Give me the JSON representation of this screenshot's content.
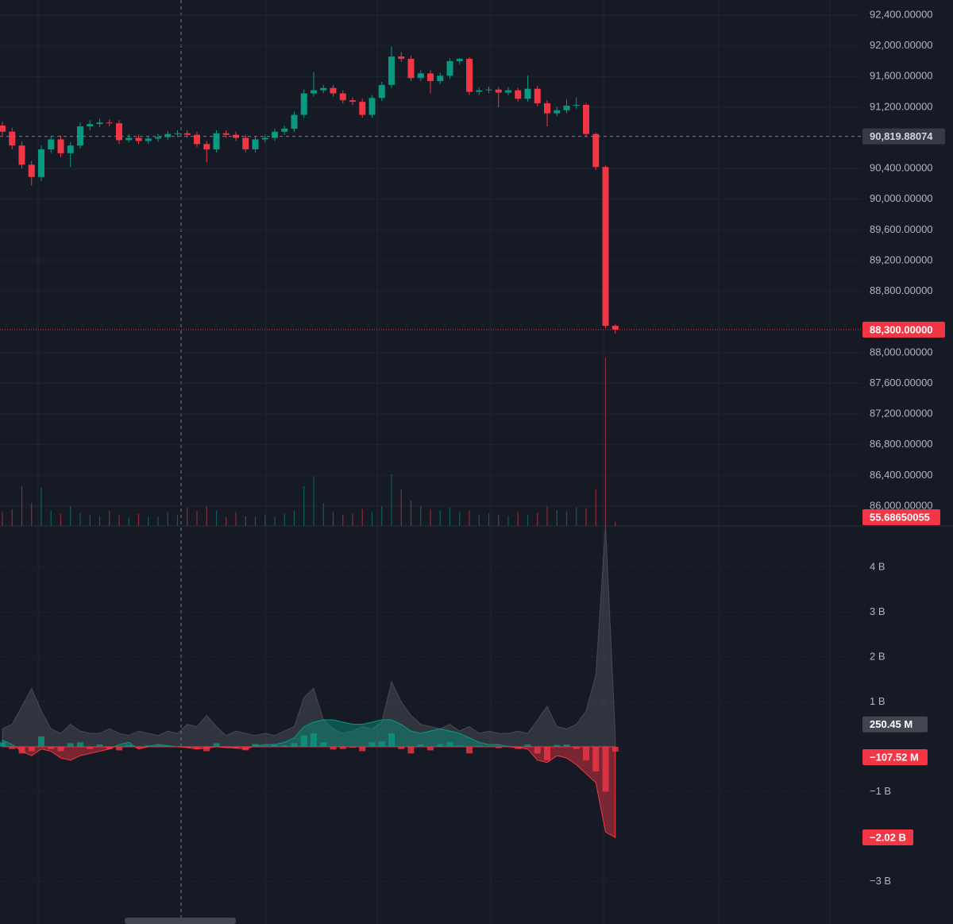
{
  "chart_data": [
    {
      "type": "candlestick",
      "open": [
        90960,
        90880,
        90700,
        90450,
        90290,
        90650,
        90780,
        90600,
        90700,
        90950,
        90980,
        91000,
        90990,
        90770,
        90800,
        90760,
        90790,
        90810,
        90850,
        90860,
        90840,
        90720,
        90650,
        90860,
        90840,
        90800,
        90650,
        90780,
        90800,
        90880,
        90920,
        91100,
        91380,
        91420,
        91450,
        91380,
        91290,
        91270,
        91100,
        91320,
        91490,
        91860,
        91830,
        91580,
        91640,
        91540,
        91610,
        91800,
        91830,
        91400,
        91420,
        91430,
        91390,
        91420,
        91310,
        91440,
        91250,
        91120,
        91160,
        91220,
        91230,
        90850,
        90420,
        88350
      ],
      "high": [
        91010,
        90930,
        90750,
        90500,
        90700,
        90830,
        90830,
        90750,
        91000,
        91030,
        91050,
        91040,
        91030,
        90850,
        90840,
        90830,
        90850,
        90890,
        90900,
        90900,
        90880,
        90760,
        90900,
        90900,
        90880,
        90840,
        90820,
        90840,
        90920,
        90960,
        91140,
        91430,
        91660,
        91490,
        91490,
        91420,
        91330,
        91310,
        91360,
        91530,
        91990,
        91920,
        91870,
        91680,
        91680,
        91650,
        91840,
        91840,
        91850,
        91460,
        91470,
        91460,
        91460,
        91450,
        91610,
        91480,
        91290,
        91210,
        91300,
        91330,
        91260,
        90870,
        90440,
        88370
      ],
      "low": [
        90830,
        90650,
        90400,
        90180,
        90240,
        90600,
        90550,
        90420,
        90660,
        90900,
        90940,
        90950,
        90720,
        90740,
        90720,
        90720,
        90750,
        90770,
        90810,
        90800,
        90680,
        90480,
        90610,
        90800,
        90760,
        90610,
        90610,
        90740,
        90760,
        90840,
        90880,
        91060,
        91340,
        91380,
        91340,
        91250,
        91230,
        91060,
        91060,
        91280,
        91450,
        91790,
        91540,
        91540,
        91380,
        91500,
        91570,
        91760,
        91360,
        91360,
        91380,
        91200,
        91350,
        91270,
        91270,
        91210,
        90950,
        91080,
        91120,
        91180,
        90810,
        90380,
        88320,
        88250
      ],
      "close": [
        90880,
        90700,
        90450,
        90290,
        90650,
        90780,
        90600,
        90700,
        90950,
        90980,
        91000,
        90990,
        90770,
        90800,
        90760,
        90790,
        90810,
        90850,
        90860,
        90840,
        90720,
        90650,
        90860,
        90840,
        90800,
        90650,
        90780,
        90800,
        90880,
        90920,
        91100,
        91380,
        91420,
        91450,
        91380,
        91290,
        91270,
        91100,
        91320,
        91490,
        91860,
        91830,
        91580,
        91640,
        91540,
        91610,
        91800,
        91830,
        91400,
        91420,
        91430,
        91390,
        91420,
        91310,
        91440,
        91250,
        91120,
        91160,
        91220,
        91230,
        90850,
        90420,
        88350,
        88300
      ],
      "volume": [
        180,
        220,
        520,
        300,
        500,
        200,
        160,
        260,
        170,
        150,
        130,
        200,
        140,
        110,
        160,
        130,
        120,
        180,
        150,
        240,
        200,
        260,
        200,
        120,
        180,
        130,
        120,
        140,
        120,
        160,
        200,
        520,
        650,
        300,
        180,
        150,
        160,
        220,
        180,
        260,
        680,
        480,
        330,
        260,
        220,
        200,
        240,
        180,
        200,
        140,
        160,
        150,
        130,
        180,
        140,
        170,
        260,
        210,
        190,
        240,
        230,
        480,
        2200,
        55.68650055
      ],
      "color_up": "#089981",
      "color_down": "#f23645",
      "ylim": [
        85741,
        92597
      ],
      "yticks": [
        {
          "value": 92400,
          "label": "92,400.00000"
        },
        {
          "value": 92000,
          "label": "92,000.00000"
        },
        {
          "value": 91600,
          "label": "91,600.00000"
        },
        {
          "value": 91200,
          "label": "91,200.00000"
        },
        {
          "value": 90400,
          "label": "90,400.00000"
        },
        {
          "value": 90000,
          "label": "90,000.00000"
        },
        {
          "value": 89600,
          "label": "89,600.00000"
        },
        {
          "value": 89200,
          "label": "89,200.00000"
        },
        {
          "value": 88800,
          "label": "88,800.00000"
        },
        {
          "value": 88000,
          "label": "88,000.00000"
        },
        {
          "value": 87600,
          "label": "87,600.00000"
        },
        {
          "value": 87200,
          "label": "87,200.00000"
        },
        {
          "value": 86800,
          "label": "86,800.00000"
        },
        {
          "value": 86400,
          "label": "86,400.00000"
        },
        {
          "value": 86000,
          "label": "86,000.00000"
        }
      ],
      "crosshair": {
        "value": 90819.88074,
        "label": "90,819.88074"
      },
      "last_price": {
        "value": 88300,
        "label": "88,300.00000"
      },
      "grid": true
    },
    {
      "type": "area",
      "series": [
        {
          "color": "#787b86",
          "values": [
            0.4,
            0.5,
            0.9,
            1.3,
            0.8,
            0.4,
            0.3,
            0.5,
            0.35,
            0.3,
            0.3,
            0.4,
            0.3,
            0.25,
            0.35,
            0.3,
            0.25,
            0.35,
            0.3,
            0.5,
            0.45,
            0.7,
            0.45,
            0.25,
            0.35,
            0.3,
            0.25,
            0.3,
            0.25,
            0.35,
            0.45,
            1.1,
            1.3,
            0.6,
            0.4,
            0.3,
            0.35,
            0.45,
            0.4,
            0.55,
            1.45,
            1.0,
            0.7,
            0.5,
            0.45,
            0.4,
            0.5,
            0.35,
            0.45,
            0.3,
            0.35,
            0.3,
            0.3,
            0.35,
            0.3,
            0.6,
            0.9,
            0.45,
            0.4,
            0.5,
            0.8,
            1.6,
            4.95,
            0.25045
          ],
          "last_label": "250.45 M"
        },
        {
          "color_up": "#089981",
          "color_down": "#f23645",
          "values": [
            0.15,
            0.05,
            -0.1,
            -0.2,
            -0.05,
            -0.1,
            -0.25,
            -0.3,
            -0.2,
            -0.15,
            -0.1,
            -0.05,
            0.05,
            0.1,
            -0.05,
            0.0,
            0.05,
            0.02,
            0.0,
            -0.02,
            -0.05,
            -0.03,
            0.0,
            -0.02,
            -0.03,
            -0.05,
            0.02,
            0.05,
            0.05,
            0.1,
            0.2,
            0.45,
            0.55,
            0.6,
            0.6,
            0.55,
            0.5,
            0.5,
            0.55,
            0.6,
            0.6,
            0.5,
            0.35,
            0.3,
            0.35,
            0.4,
            0.35,
            0.3,
            0.2,
            0.1,
            0.05,
            0.05,
            0.0,
            -0.02,
            -0.05,
            -0.3,
            -0.35,
            -0.2,
            -0.25,
            -0.4,
            -0.6,
            -0.8,
            -1.9,
            -2.02
          ],
          "last_label": "−2.02 B"
        },
        {
          "type": "bar",
          "color_up": "#089981",
          "color_down": "#f23645",
          "values": [
            0.1,
            -0.05,
            -0.15,
            -0.1,
            0.23,
            -0.05,
            -0.1,
            0.08,
            0.1,
            -0.05,
            0.05,
            -0.05,
            -0.08,
            0.04,
            -0.03,
            0.03,
            0.02,
            0.03,
            0.01,
            -0.02,
            -0.05,
            -0.1,
            0.08,
            -0.02,
            -0.04,
            -0.08,
            0.06,
            0.02,
            0.04,
            0.03,
            0.08,
            0.25,
            0.3,
            0.1,
            -0.06,
            -0.05,
            -0.02,
            -0.1,
            0.1,
            0.12,
            0.3,
            -0.05,
            -0.15,
            0.05,
            -0.08,
            0.06,
            0.1,
            0.03,
            -0.15,
            0.02,
            0.01,
            -0.03,
            0.02,
            -0.05,
            0.05,
            -0.15,
            -0.3,
            0.04,
            0.05,
            -0.05,
            -0.3,
            -0.55,
            -1.0,
            -0.10752
          ],
          "last_label": "−107.52 M"
        }
      ],
      "ylim": [
        -3.95,
        4.92
      ],
      "yticks": [
        {
          "value": 4,
          "label": "4 B"
        },
        {
          "value": 3,
          "label": "3 B"
        },
        {
          "value": 2,
          "label": "2 B"
        },
        {
          "value": 1,
          "label": "1 B"
        },
        {
          "value": -1,
          "label": "−1 B"
        },
        {
          "value": -3,
          "label": "−3 B"
        }
      ],
      "grid": true
    }
  ]
}
